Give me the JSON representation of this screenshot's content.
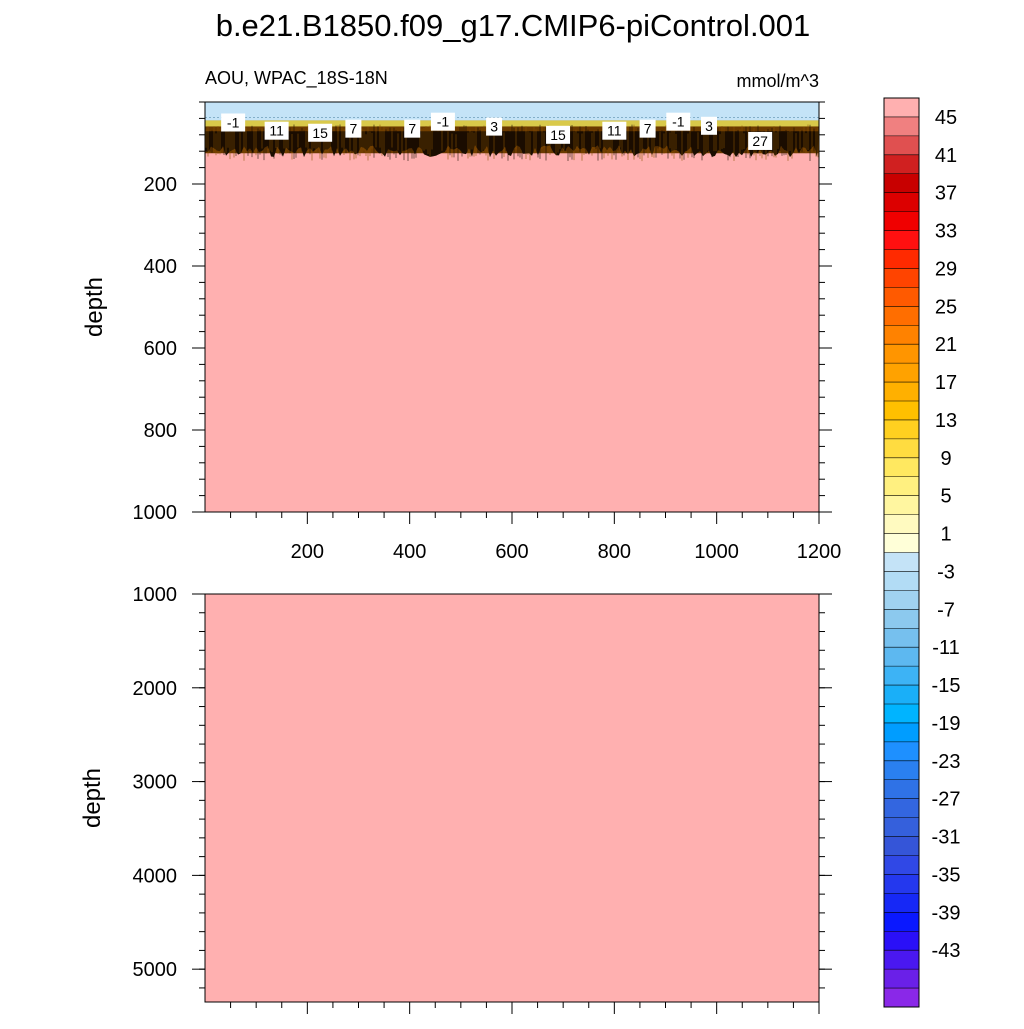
{
  "title": "b.e21.B1850.f09_g17.CMIP6-piControl.001",
  "colors": {
    "background_fill": "#FFB0B0",
    "near_surface_band": "#C4E3F7",
    "contour_band_dark": "#1a0d00",
    "contour_band_mid": "#6b3a00",
    "contour_band_light": "#d9c94a",
    "frame": "#000000",
    "label_box": "#ffffff"
  },
  "chart_data": [
    {
      "type": "heatmap",
      "panel": "upper",
      "left_label": "AOU, WPAC_18S-18N",
      "right_label": "mmol/m^3",
      "ylabel": "depth",
      "xlabel": "",
      "xlim": [
        0,
        1200
      ],
      "ylim": [
        1000,
        0
      ],
      "x_ticks": [
        200,
        400,
        600,
        800,
        1000,
        1200
      ],
      "y_ticks": [
        200,
        400,
        600,
        800,
        1000
      ],
      "grid": false,
      "surface_band_bottom_depth": 45,
      "contour_band_bottom_depth": 125,
      "contour_labels": [
        {
          "x": 55,
          "y": 50,
          "text": "-1"
        },
        {
          "x": 140,
          "y": 70,
          "text": "11"
        },
        {
          "x": 225,
          "y": 75,
          "text": "15"
        },
        {
          "x": 290,
          "y": 65,
          "text": "7"
        },
        {
          "x": 405,
          "y": 65,
          "text": "7"
        },
        {
          "x": 465,
          "y": 48,
          "text": "-1"
        },
        {
          "x": 565,
          "y": 60,
          "text": "3"
        },
        {
          "x": 690,
          "y": 80,
          "text": "15"
        },
        {
          "x": 800,
          "y": 70,
          "text": "11"
        },
        {
          "x": 865,
          "y": 65,
          "text": "7"
        },
        {
          "x": 925,
          "y": 48,
          "text": "-1"
        },
        {
          "x": 985,
          "y": 58,
          "text": "3"
        },
        {
          "x": 1085,
          "y": 95,
          "text": "27"
        }
      ]
    },
    {
      "type": "heatmap",
      "panel": "lower",
      "ylabel": "depth",
      "xlabel": "",
      "xlim": [
        0,
        1200
      ],
      "ylim": [
        5350,
        1000
      ],
      "y_ticks": [
        1000,
        2000,
        3000,
        4000,
        5000
      ],
      "x_ticks": [],
      "grid": false
    }
  ],
  "colorbar": {
    "labels": [
      "45",
      "41",
      "37",
      "33",
      "29",
      "25",
      "21",
      "17",
      "13",
      "9",
      "5",
      "1",
      "-3",
      "-7",
      "-11",
      "-15",
      "-19",
      "-23",
      "-27",
      "-31",
      "-35",
      "-39",
      "-43"
    ],
    "colors": [
      "#FFB0B0",
      "#F08080",
      "#E05050",
      "#D02020",
      "#C80000",
      "#DC0000",
      "#F00000",
      "#FF1010",
      "#FF2A00",
      "#FF4400",
      "#FF5A00",
      "#FF6E00",
      "#FF8200",
      "#FF9500",
      "#FFA200",
      "#FFB000",
      "#FFC000",
      "#FFD020",
      "#FFDC40",
      "#FFE860",
      "#FFF080",
      "#FFF6A0",
      "#FFFAC0",
      "#FFFFD8",
      "#C4E3F7",
      "#B2DCF5",
      "#A0D2F0",
      "#8CC9EE",
      "#76C0EE",
      "#5DB8F0",
      "#3DB3F5",
      "#1AAFF8",
      "#00B4FF",
      "#009DFF",
      "#1E90FF",
      "#2A80F0",
      "#2F72E6",
      "#3366E0",
      "#3560DC",
      "#3555D8",
      "#3048E6",
      "#2438EE",
      "#1628F6",
      "#0A18FF",
      "#2A10F8",
      "#4A18F0",
      "#6A20E8",
      "#8A28E8"
    ]
  }
}
